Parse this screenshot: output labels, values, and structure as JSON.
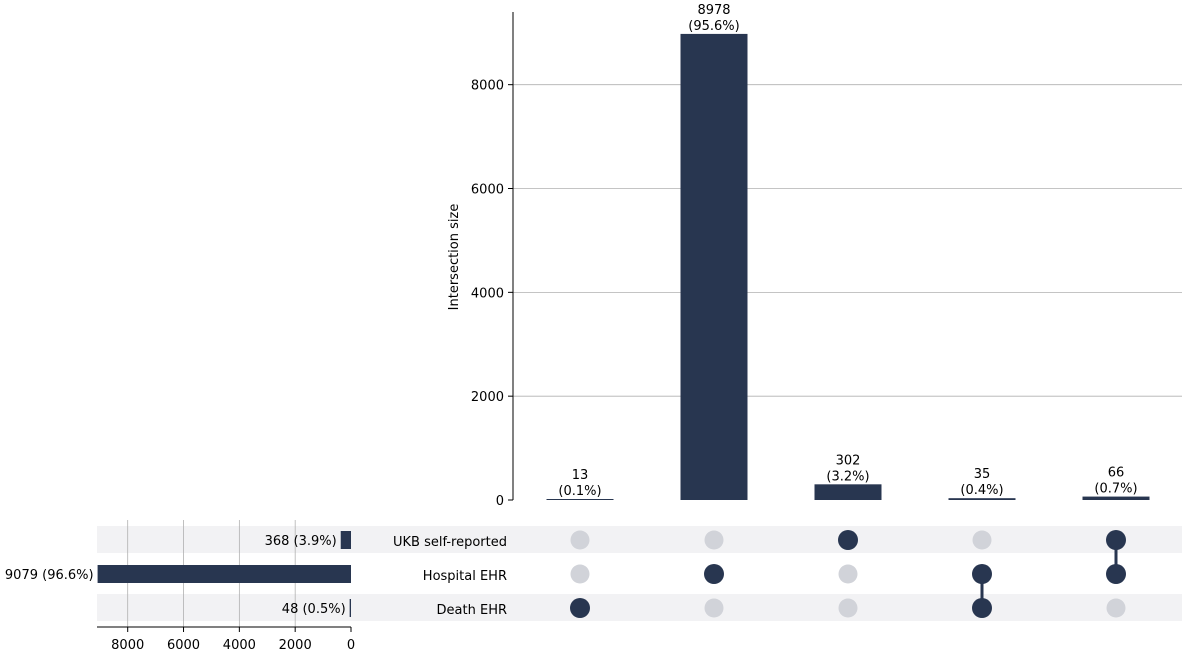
{
  "chart_data": {
    "type": "upset",
    "title": "",
    "intersection_axis": {
      "ylabel": "Intersection size",
      "ylim": [
        0,
        9400
      ],
      "ticks": [
        0,
        2000,
        4000,
        6000,
        8000
      ],
      "tick_labels": [
        "0",
        "2000",
        "4000",
        "6000",
        "8000"
      ],
      "grid": true
    },
    "intersections": [
      {
        "members": [
          "Death EHR"
        ],
        "value": 13,
        "label_value": "13",
        "label_pct": "(0.1%)"
      },
      {
        "members": [
          "Hospital EHR"
        ],
        "value": 8978,
        "label_value": "8978",
        "label_pct": "(95.6%)"
      },
      {
        "members": [
          "UKB self-reported"
        ],
        "value": 302,
        "label_value": "302",
        "label_pct": "(3.2%)"
      },
      {
        "members": [
          "Hospital EHR",
          "Death EHR"
        ],
        "value": 35,
        "label_value": "35",
        "label_pct": "(0.4%)"
      },
      {
        "members": [
          "UKB self-reported",
          "Hospital EHR"
        ],
        "value": 66,
        "label_value": "66",
        "label_pct": "(0.7%)"
      }
    ],
    "sets": [
      {
        "name": "UKB self-reported",
        "size": 368,
        "label": "368 (3.9%)"
      },
      {
        "name": "Hospital EHR",
        "size": 9079,
        "label": "9079 (96.6%)"
      },
      {
        "name": "Death EHR",
        "size": 48,
        "label": "48 (0.5%)"
      }
    ],
    "set_axis": {
      "xlim": [
        9100,
        0
      ],
      "ticks": [
        8000,
        6000,
        4000,
        2000,
        0
      ],
      "tick_labels": [
        "8000",
        "6000",
        "4000",
        "2000",
        "0"
      ],
      "grid": true
    },
    "colors": {
      "bar": "#283650",
      "dot_active": "#283650",
      "dot_inactive": "#d1d3d9",
      "stripe": "#f2f2f4",
      "grid": "#b0b0b0"
    }
  }
}
